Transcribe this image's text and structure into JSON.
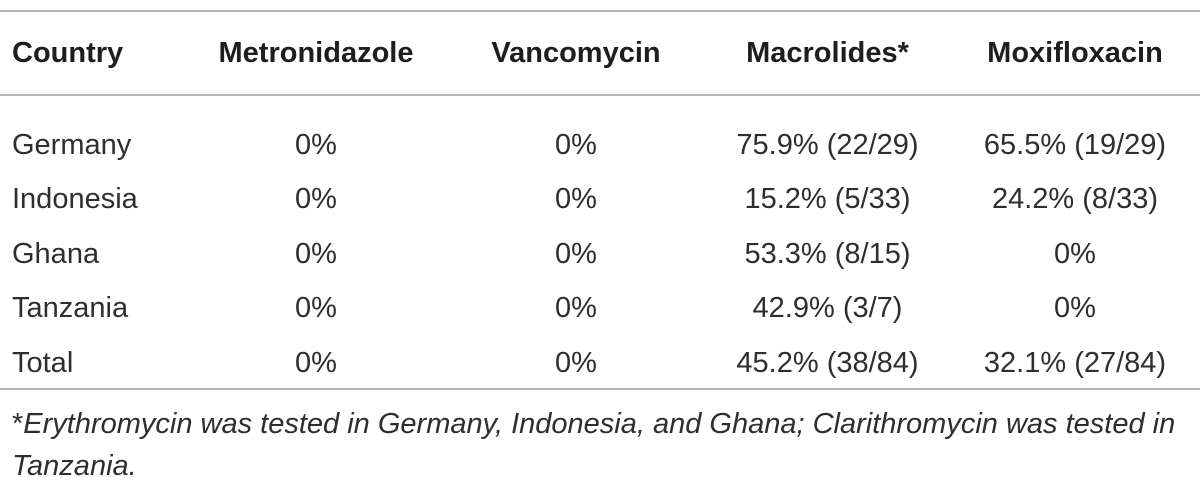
{
  "table": {
    "headers": [
      "Country",
      "Metronidazole",
      "Vancomycin",
      "Macrolides*",
      "Moxifloxacin"
    ],
    "rows": [
      [
        "Germany",
        "0%",
        "0%",
        "75.9% (22/29)",
        "65.5% (19/29)"
      ],
      [
        "Indonesia",
        "0%",
        "0%",
        "15.2% (5/33)",
        "24.2% (8/33)"
      ],
      [
        "Ghana",
        "0%",
        "0%",
        "53.3% (8/15)",
        "0%"
      ],
      [
        "Tanzania",
        "0%",
        "0%",
        "42.9% (3/7)",
        "0%"
      ],
      [
        "Total",
        "0%",
        "0%",
        "45.2% (38/84)",
        "32.1% (27/84)"
      ]
    ]
  },
  "footnote": {
    "mark": "*",
    "text": "Erythromycin was tested in Germany, Indonesia, and Ghana; Clarithromycin was tested in Tanzania."
  }
}
